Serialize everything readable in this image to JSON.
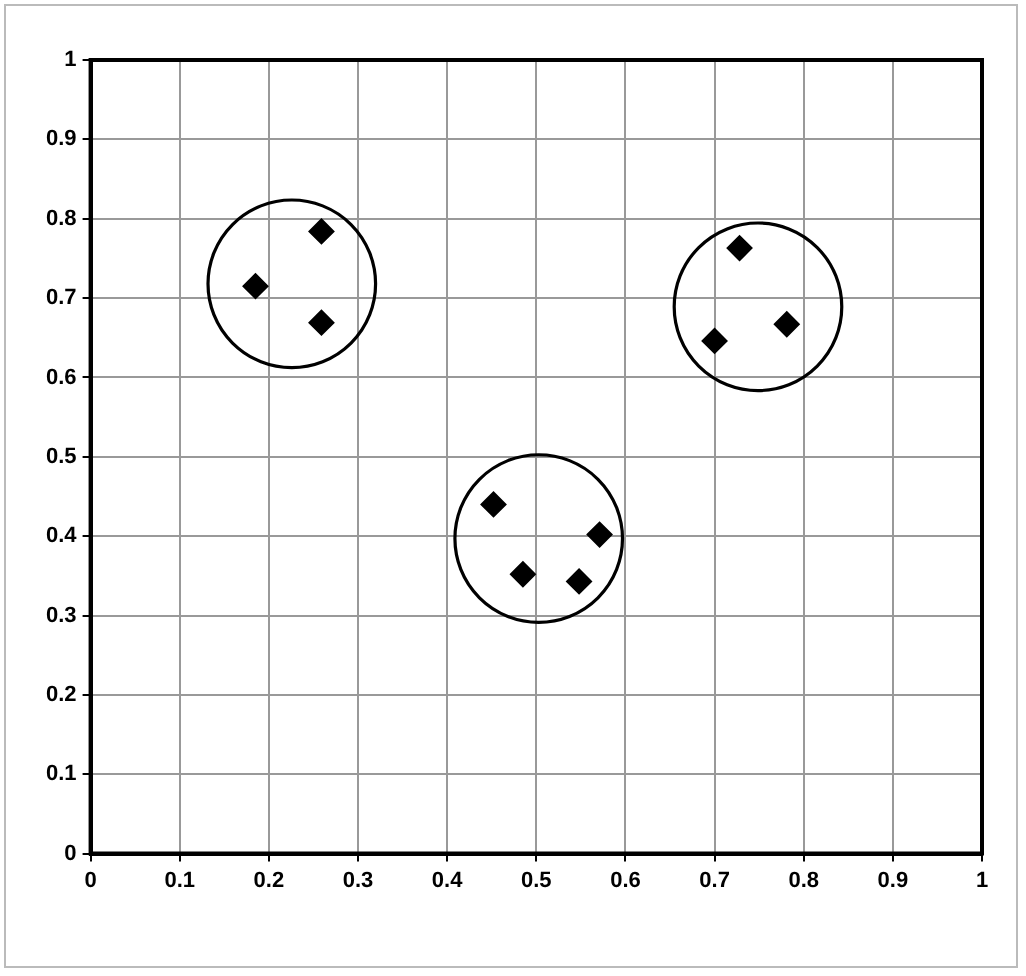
{
  "chart_data": {
    "type": "scatter",
    "series": [
      {
        "color": "#000000",
        "x": [
          0.185,
          0.259,
          0.259,
          0.452,
          0.485,
          0.548,
          0.571,
          0.728,
          0.7,
          0.781
        ],
        "values": [
          0.715,
          0.784,
          0.669,
          0.44,
          0.352,
          0.343,
          0.402,
          0.763,
          0.646,
          0.667
        ]
      }
    ],
    "marker": "diamond",
    "xlim": [
      0,
      1
    ],
    "ylim": [
      0,
      1
    ],
    "xticks": [
      0,
      0.1,
      0.2,
      0.3,
      0.4,
      0.5,
      0.6,
      0.7,
      0.8,
      0.9,
      1
    ],
    "yticks": [
      0,
      0.1,
      0.2,
      0.3,
      0.4,
      0.5,
      0.6,
      0.7,
      0.8,
      0.9,
      1
    ],
    "grid": true,
    "legend": false
  }
}
